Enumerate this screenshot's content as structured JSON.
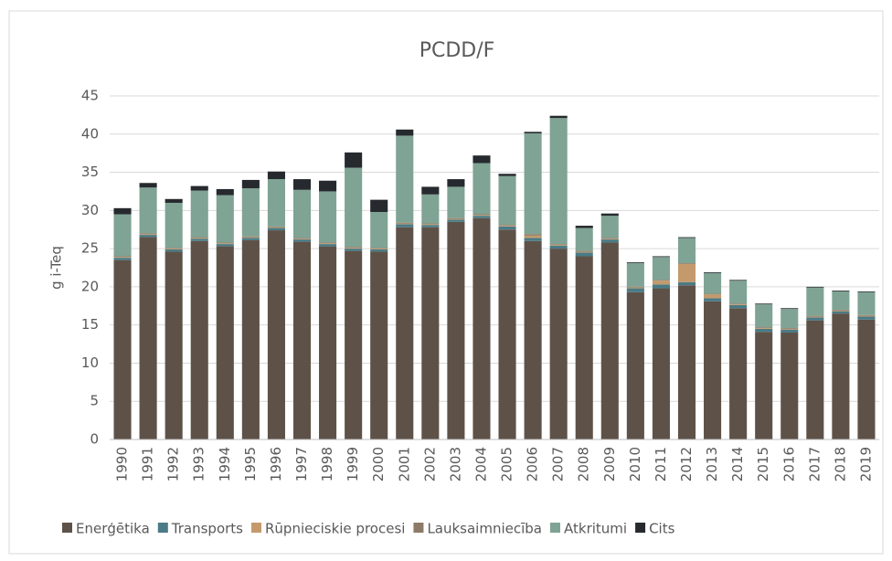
{
  "chart_data": {
    "type": "stacked_bar",
    "title": "PCDD/F",
    "ylabel": "g i-Teq",
    "categories": [
      "1990",
      "1991",
      "1992",
      "1993",
      "1994",
      "1995",
      "1996",
      "1997",
      "1998",
      "1999",
      "2000",
      "2001",
      "2002",
      "2003",
      "2004",
      "2005",
      "2006",
      "2007",
      "2008",
      "2009",
      "2010",
      "2011",
      "2012",
      "2013",
      "2014",
      "2015",
      "2016",
      "2017",
      "2018",
      "2019"
    ],
    "series": [
      {
        "name": "Enerģētika",
        "color": "#5e5248",
        "values": [
          23.5,
          26.5,
          24.6,
          26.0,
          25.3,
          26.1,
          27.4,
          25.9,
          25.3,
          24.7,
          24.6,
          27.8,
          27.8,
          28.5,
          29.0,
          27.5,
          26.0,
          25.0,
          24.0,
          25.8,
          19.3,
          19.8,
          20.2,
          18.1,
          17.2,
          14.1,
          14.0,
          15.6,
          16.5,
          15.7
        ]
      },
      {
        "name": "Transports",
        "color": "#4a7b86",
        "values": [
          0.3,
          0.3,
          0.3,
          0.3,
          0.3,
          0.3,
          0.3,
          0.3,
          0.3,
          0.3,
          0.3,
          0.4,
          0.3,
          0.3,
          0.3,
          0.4,
          0.4,
          0.4,
          0.5,
          0.4,
          0.5,
          0.5,
          0.4,
          0.4,
          0.4,
          0.4,
          0.4,
          0.4,
          0.3,
          0.4
        ]
      },
      {
        "name": "Rūpnieciskie procesi",
        "color": "#c49a6c",
        "values": [
          0.1,
          0.1,
          0.1,
          0.1,
          0.1,
          0.1,
          0.1,
          0.1,
          0.1,
          0.1,
          0.1,
          0.1,
          0.1,
          0.1,
          0.1,
          0.1,
          0.3,
          0.1,
          0.1,
          0.1,
          0.1,
          0.5,
          2.4,
          0.5,
          0.1,
          0.1,
          0.1,
          0.1,
          0.1,
          0.1
        ]
      },
      {
        "name": "Lauksaimniecība",
        "color": "#8c7b68",
        "values": [
          0.1,
          0.1,
          0.1,
          0.1,
          0.1,
          0.1,
          0.1,
          0.1,
          0.1,
          0.1,
          0.1,
          0.1,
          0.1,
          0.1,
          0.1,
          0.1,
          0.2,
          0.1,
          0.1,
          0.1,
          0.1,
          0.1,
          0.1,
          0.1,
          0.1,
          0.1,
          0.1,
          0.1,
          0.1,
          0.1
        ]
      },
      {
        "name": "Atkritumi",
        "color": "#7fa394",
        "values": [
          5.5,
          6.0,
          5.9,
          6.1,
          6.2,
          6.3,
          6.2,
          6.3,
          6.7,
          10.4,
          4.7,
          11.4,
          3.8,
          4.1,
          6.7,
          6.4,
          13.2,
          16.5,
          3.0,
          2.9,
          3.1,
          3.0,
          3.3,
          2.7,
          3.0,
          3.0,
          2.5,
          3.7,
          2.4,
          3.0
        ]
      },
      {
        "name": "Cits",
        "color": "#262a2e",
        "values": [
          0.8,
          0.6,
          0.5,
          0.6,
          0.8,
          1.1,
          1.0,
          1.4,
          1.4,
          2.0,
          1.6,
          0.8,
          1.0,
          1.0,
          1.0,
          0.3,
          0.2,
          0.3,
          0.3,
          0.3,
          0.1,
          0.1,
          0.1,
          0.1,
          0.1,
          0.1,
          0.1,
          0.1,
          0.1,
          0.1
        ]
      }
    ],
    "ylim": [
      0,
      45
    ],
    "yticks": [
      0,
      5,
      10,
      15,
      20,
      25,
      30,
      35,
      40,
      45
    ],
    "grid": true,
    "legend": "bottom"
  }
}
